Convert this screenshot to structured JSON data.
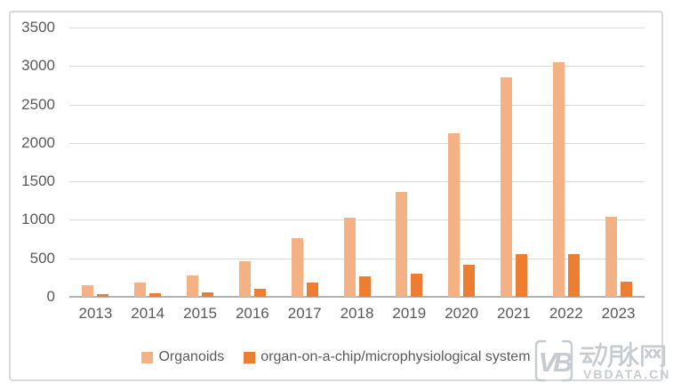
{
  "chart_data": {
    "type": "bar",
    "title": "",
    "categories": [
      "2013",
      "2014",
      "2015",
      "2016",
      "2017",
      "2018",
      "2019",
      "2020",
      "2021",
      "2022",
      "2023"
    ],
    "series": [
      {
        "name": "Organoids",
        "color": "#f4b183",
        "values": [
          150,
          190,
          280,
          465,
          760,
          1030,
          1360,
          2130,
          2850,
          3050,
          1040
        ]
      },
      {
        "name": "organ-on-a-chip/microphysiological system",
        "color": "#ed7d31",
        "values": [
          40,
          45,
          55,
          105,
          180,
          270,
          300,
          420,
          560,
          560,
          200
        ]
      }
    ],
    "ylim": [
      0,
      3500
    ],
    "yticks": [
      0,
      500,
      1000,
      1500,
      2000,
      2500,
      3000,
      3500
    ],
    "grid": true,
    "legend_position": "bottom"
  },
  "colors": {
    "background": "#ffffff",
    "frame_border": "#d9d9d9",
    "gridline": "#d9d9d9",
    "axis_line": "#b3b3b3",
    "axis_label": "#595959",
    "series_light": "#f4b183",
    "series_dark": "#ed7d31",
    "watermark": "#c6cbd0"
  },
  "watermark": {
    "logo_monogram": "VB",
    "brand_name": "动脉网",
    "site_url": "VBDATA.CN"
  }
}
